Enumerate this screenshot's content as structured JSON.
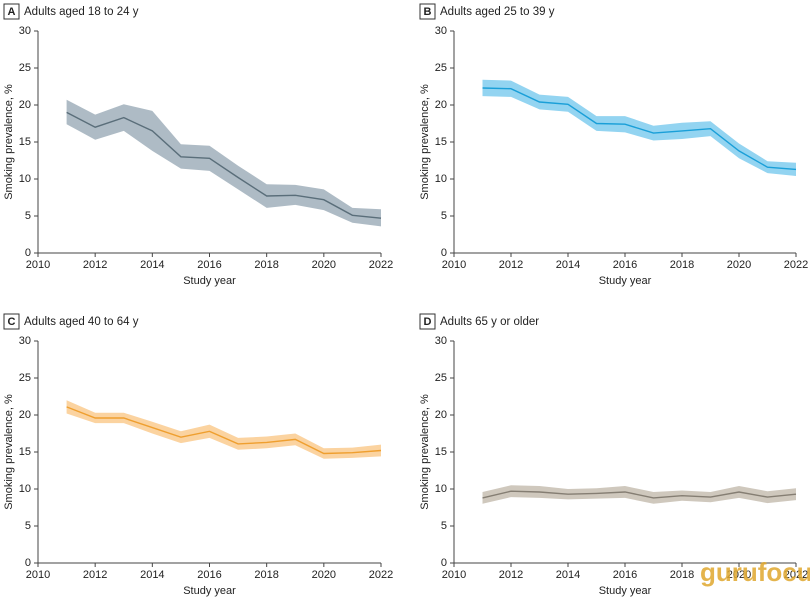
{
  "chart_data": [
    {
      "type": "line",
      "panel": "A",
      "title": "Adults aged 18 to 24 y",
      "xlabel": "Study year",
      "ylabel": "Smoking prevalence, %",
      "x": [
        2011,
        2012,
        2013,
        2014,
        2015,
        2016,
        2017,
        2018,
        2019,
        2020,
        2021,
        2022
      ],
      "series": [
        {
          "color": "#5a6e7a",
          "band_color": "#aebbc5",
          "values": [
            19.0,
            17.0,
            18.3,
            16.5,
            13.0,
            12.8,
            10.2,
            7.7,
            7.8,
            7.2,
            5.1,
            4.7
          ],
          "upper": [
            20.7,
            18.7,
            20.1,
            19.2,
            14.7,
            14.5,
            11.8,
            9.3,
            9.2,
            8.6,
            6.1,
            5.9
          ],
          "lower": [
            17.4,
            15.3,
            16.5,
            13.8,
            11.4,
            11.1,
            8.6,
            6.1,
            6.5,
            5.8,
            4.1,
            3.6
          ]
        }
      ],
      "xlim": [
        2010,
        2022
      ],
      "ylim": [
        0,
        30
      ],
      "xticks": [
        2010,
        2012,
        2014,
        2016,
        2018,
        2020,
        2022
      ],
      "yticks": [
        0,
        5,
        10,
        15,
        20,
        25,
        30
      ]
    },
    {
      "type": "line",
      "panel": "B",
      "title": "Adults aged 25 to 39 y",
      "xlabel": "Study year",
      "ylabel": "Smoking prevalence, %",
      "x": [
        2011,
        2012,
        2013,
        2014,
        2015,
        2016,
        2017,
        2018,
        2019,
        2020,
        2021,
        2022
      ],
      "series": [
        {
          "color": "#1a9fd8",
          "band_color": "#93d4f1",
          "values": [
            22.3,
            22.2,
            20.4,
            20.1,
            17.5,
            17.4,
            16.2,
            16.5,
            16.8,
            13.8,
            11.6,
            11.3
          ],
          "upper": [
            23.4,
            23.3,
            21.4,
            21.1,
            18.5,
            18.5,
            17.2,
            17.6,
            17.8,
            14.8,
            12.4,
            12.2
          ],
          "lower": [
            21.2,
            21.1,
            19.4,
            19.1,
            16.5,
            16.3,
            15.2,
            15.4,
            15.8,
            12.8,
            10.8,
            10.4
          ]
        }
      ],
      "xlim": [
        2010,
        2022
      ],
      "ylim": [
        0,
        30
      ],
      "xticks": [
        2010,
        2012,
        2014,
        2016,
        2018,
        2020,
        2022
      ],
      "yticks": [
        0,
        5,
        10,
        15,
        20,
        25,
        30
      ]
    },
    {
      "type": "line",
      "panel": "C",
      "title": "Adults aged 40 to 64 y",
      "xlabel": "Study year",
      "ylabel": "Smoking prevalence, %",
      "x": [
        2011,
        2012,
        2013,
        2014,
        2015,
        2016,
        2017,
        2018,
        2019,
        2020,
        2021,
        2022
      ],
      "series": [
        {
          "color": "#ef9f2f",
          "band_color": "#fbd3a0",
          "values": [
            21.1,
            19.6,
            19.6,
            18.3,
            17.0,
            17.8,
            16.1,
            16.3,
            16.7,
            14.8,
            14.9,
            15.2
          ],
          "upper": [
            22.0,
            20.3,
            20.3,
            19.1,
            17.8,
            18.7,
            16.9,
            17.1,
            17.5,
            15.5,
            15.6,
            16.0
          ],
          "lower": [
            20.2,
            18.9,
            18.9,
            17.5,
            16.2,
            16.9,
            15.3,
            15.5,
            15.9,
            14.1,
            14.2,
            14.4
          ]
        }
      ],
      "xlim": [
        2010,
        2022
      ],
      "ylim": [
        0,
        30
      ],
      "xticks": [
        2010,
        2012,
        2014,
        2016,
        2018,
        2020,
        2022
      ],
      "yticks": [
        0,
        5,
        10,
        15,
        20,
        25,
        30
      ]
    },
    {
      "type": "line",
      "panel": "D",
      "title": "Adults 65 y or older",
      "xlabel": "Study year",
      "ylabel": "Smoking prevalence, %",
      "x": [
        2011,
        2012,
        2013,
        2014,
        2015,
        2016,
        2017,
        2018,
        2019,
        2020,
        2021,
        2022
      ],
      "series": [
        {
          "color": "#857e73",
          "band_color": "#cfc8bd",
          "values": [
            8.8,
            9.7,
            9.6,
            9.3,
            9.4,
            9.6,
            8.8,
            9.1,
            8.9,
            9.6,
            8.9,
            9.3
          ],
          "upper": [
            9.6,
            10.5,
            10.4,
            10.0,
            10.1,
            10.4,
            9.6,
            9.8,
            9.6,
            10.4,
            9.7,
            10.1
          ],
          "lower": [
            8.0,
            8.9,
            8.8,
            8.6,
            8.7,
            8.8,
            8.0,
            8.4,
            8.2,
            8.8,
            8.1,
            8.5
          ]
        }
      ],
      "xlim": [
        2010,
        2022
      ],
      "ylim": [
        0,
        30
      ],
      "xticks": [
        2010,
        2012,
        2014,
        2016,
        2018,
        2020,
        2022
      ],
      "yticks": [
        0,
        5,
        10,
        15,
        20,
        25,
        30
      ]
    }
  ],
  "watermark": "gurufocus"
}
